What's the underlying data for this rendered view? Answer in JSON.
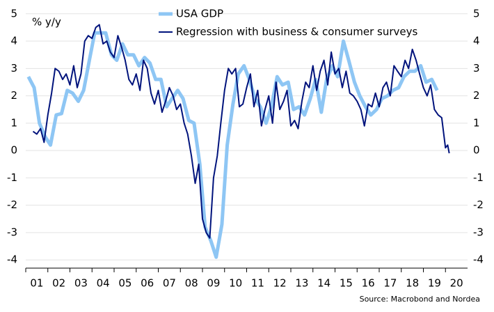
{
  "chart_data": {
    "type": "line",
    "y_label": "% y/y",
    "source": "Source: Macrobond and Nordea",
    "xlim": [
      1,
      21
    ],
    "xticks": [
      {
        "value": 1,
        "label": "01"
      },
      {
        "value": 2,
        "label": "02"
      },
      {
        "value": 3,
        "label": "03"
      },
      {
        "value": 4,
        "label": "04"
      },
      {
        "value": 5,
        "label": "05"
      },
      {
        "value": 6,
        "label": "06"
      },
      {
        "value": 7,
        "label": "07"
      },
      {
        "value": 8,
        "label": "08"
      },
      {
        "value": 9,
        "label": "09"
      },
      {
        "value": 10,
        "label": "10"
      },
      {
        "value": 11,
        "label": "11"
      },
      {
        "value": 12,
        "label": "12"
      },
      {
        "value": 13,
        "label": "13"
      },
      {
        "value": 14,
        "label": "14"
      },
      {
        "value": 15,
        "label": "15"
      },
      {
        "value": 16,
        "label": "16"
      },
      {
        "value": 17,
        "label": "17"
      },
      {
        "value": 18,
        "label": "18"
      },
      {
        "value": 19,
        "label": "19"
      },
      {
        "value": 20,
        "label": "20"
      }
    ],
    "ylim": [
      -4.3,
      5.3
    ],
    "yticks": [
      -4,
      -3,
      -2,
      -1,
      0,
      1,
      2,
      3,
      4,
      5
    ],
    "y2lim": [
      -4.3,
      5.3
    ],
    "y2ticks": [
      -4,
      -3,
      -2,
      -1,
      0,
      1,
      2,
      3,
      4,
      5
    ],
    "grid": true,
    "legend": "top-left",
    "series": [
      {
        "name": "USA GDP",
        "color": "#8ec6f4",
        "width": 5,
        "x": [
          1.12,
          1.38,
          1.62,
          1.88,
          2.12,
          2.38,
          2.62,
          2.88,
          3.12,
          3.38,
          3.62,
          3.88,
          4.12,
          4.38,
          4.62,
          4.88,
          5.12,
          5.38,
          5.62,
          5.88,
          6.12,
          6.38,
          6.62,
          6.88,
          7.12,
          7.38,
          7.62,
          7.88,
          8.12,
          8.38,
          8.62,
          8.88,
          9.12,
          9.38,
          9.62,
          9.88,
          10.12,
          10.38,
          10.62,
          10.88,
          11.12,
          11.38,
          11.62,
          11.88,
          12.12,
          12.38,
          12.62,
          12.88,
          13.12,
          13.38,
          13.62,
          13.88,
          14.12,
          14.38,
          14.62,
          14.88,
          15.12,
          15.38,
          15.62,
          15.88,
          16.12,
          16.38,
          16.62,
          16.88,
          17.12,
          17.38,
          17.62,
          17.88,
          18.12,
          18.38,
          18.62,
          18.88,
          19.12,
          19.38,
          19.62
        ],
        "values": [
          2.7,
          2.3,
          1.0,
          0.5,
          0.2,
          1.3,
          1.35,
          2.2,
          2.1,
          1.8,
          2.2,
          3.3,
          4.3,
          4.3,
          4.3,
          3.5,
          3.3,
          3.9,
          3.5,
          3.5,
          3.1,
          3.4,
          3.2,
          2.6,
          2.6,
          1.6,
          1.9,
          2.2,
          1.9,
          1.1,
          1.0,
          -0.5,
          -2.8,
          -3.3,
          -3.9,
          -2.7,
          0.2,
          1.7,
          2.8,
          3.1,
          2.6,
          1.9,
          1.6,
          1.0,
          1.6,
          2.7,
          2.4,
          2.5,
          1.5,
          1.6,
          1.3,
          1.9,
          2.6,
          1.4,
          2.6,
          3.1,
          2.7,
          4.0,
          3.3,
          2.5,
          2.0,
          1.6,
          1.3,
          1.5,
          1.9,
          2.0,
          2.2,
          2.3,
          2.7,
          2.9,
          2.9,
          3.1,
          2.5,
          2.6,
          2.2
        ]
      },
      {
        "name": "Regression with business & consumer surveys",
        "color": "#00137c",
        "width": 2,
        "x": [
          1.33,
          1.5,
          1.67,
          1.83,
          2.0,
          2.17,
          2.33,
          2.5,
          2.67,
          2.83,
          3.0,
          3.17,
          3.33,
          3.5,
          3.67,
          3.83,
          4.0,
          4.17,
          4.33,
          4.5,
          4.67,
          4.83,
          5.0,
          5.17,
          5.33,
          5.5,
          5.67,
          5.83,
          6.0,
          6.17,
          6.33,
          6.5,
          6.67,
          6.83,
          7.0,
          7.17,
          7.33,
          7.5,
          7.67,
          7.83,
          8.0,
          8.17,
          8.33,
          8.5,
          8.67,
          8.83,
          9.0,
          9.17,
          9.33,
          9.5,
          9.67,
          9.83,
          10.0,
          10.17,
          10.33,
          10.5,
          10.67,
          10.83,
          11.0,
          11.17,
          11.33,
          11.5,
          11.67,
          11.83,
          12.0,
          12.17,
          12.33,
          12.5,
          12.67,
          12.83,
          13.0,
          13.17,
          13.33,
          13.5,
          13.67,
          13.83,
          14.0,
          14.17,
          14.33,
          14.5,
          14.67,
          14.83,
          15.0,
          15.17,
          15.33,
          15.5,
          15.67,
          15.83,
          16.0,
          16.17,
          16.33,
          16.5,
          16.67,
          16.83,
          17.0,
          17.17,
          17.33,
          17.5,
          17.67,
          17.83,
          18.0,
          18.17,
          18.33,
          18.5,
          18.67,
          18.83,
          19.0,
          19.17,
          19.33,
          19.5,
          19.67,
          19.83,
          20.0,
          20.1,
          20.17
        ],
        "values": [
          0.7,
          0.6,
          0.8,
          0.3,
          1.3,
          2.1,
          3.0,
          2.9,
          2.6,
          2.8,
          2.4,
          3.1,
          2.3,
          2.8,
          4.0,
          4.2,
          4.1,
          4.5,
          4.6,
          3.9,
          4.0,
          3.6,
          3.4,
          4.2,
          3.8,
          3.3,
          2.6,
          2.4,
          2.8,
          2.2,
          3.3,
          3.0,
          2.1,
          1.7,
          2.2,
          1.4,
          1.8,
          2.3,
          2.0,
          1.5,
          1.7,
          1.0,
          0.6,
          -0.2,
          -1.2,
          -0.5,
          -2.5,
          -3.0,
          -3.2,
          -1.0,
          -0.2,
          1.0,
          2.2,
          3.0,
          2.8,
          3.0,
          1.6,
          1.7,
          2.3,
          2.8,
          1.6,
          2.2,
          0.9,
          1.5,
          2.0,
          1.0,
          2.5,
          1.5,
          1.8,
          2.2,
          0.9,
          1.1,
          0.8,
          1.8,
          2.5,
          2.3,
          3.1,
          2.2,
          2.9,
          3.3,
          2.4,
          3.6,
          2.8,
          3.0,
          2.3,
          2.9,
          2.1,
          2.0,
          1.8,
          1.5,
          0.9,
          1.7,
          1.6,
          2.1,
          1.6,
          2.3,
          2.5,
          2.0,
          3.1,
          2.9,
          2.7,
          3.3,
          3.0,
          3.7,
          3.3,
          2.8,
          2.3,
          2.0,
          2.4,
          1.5,
          1.3,
          1.2,
          0.1,
          0.2,
          -0.1
        ]
      }
    ]
  }
}
